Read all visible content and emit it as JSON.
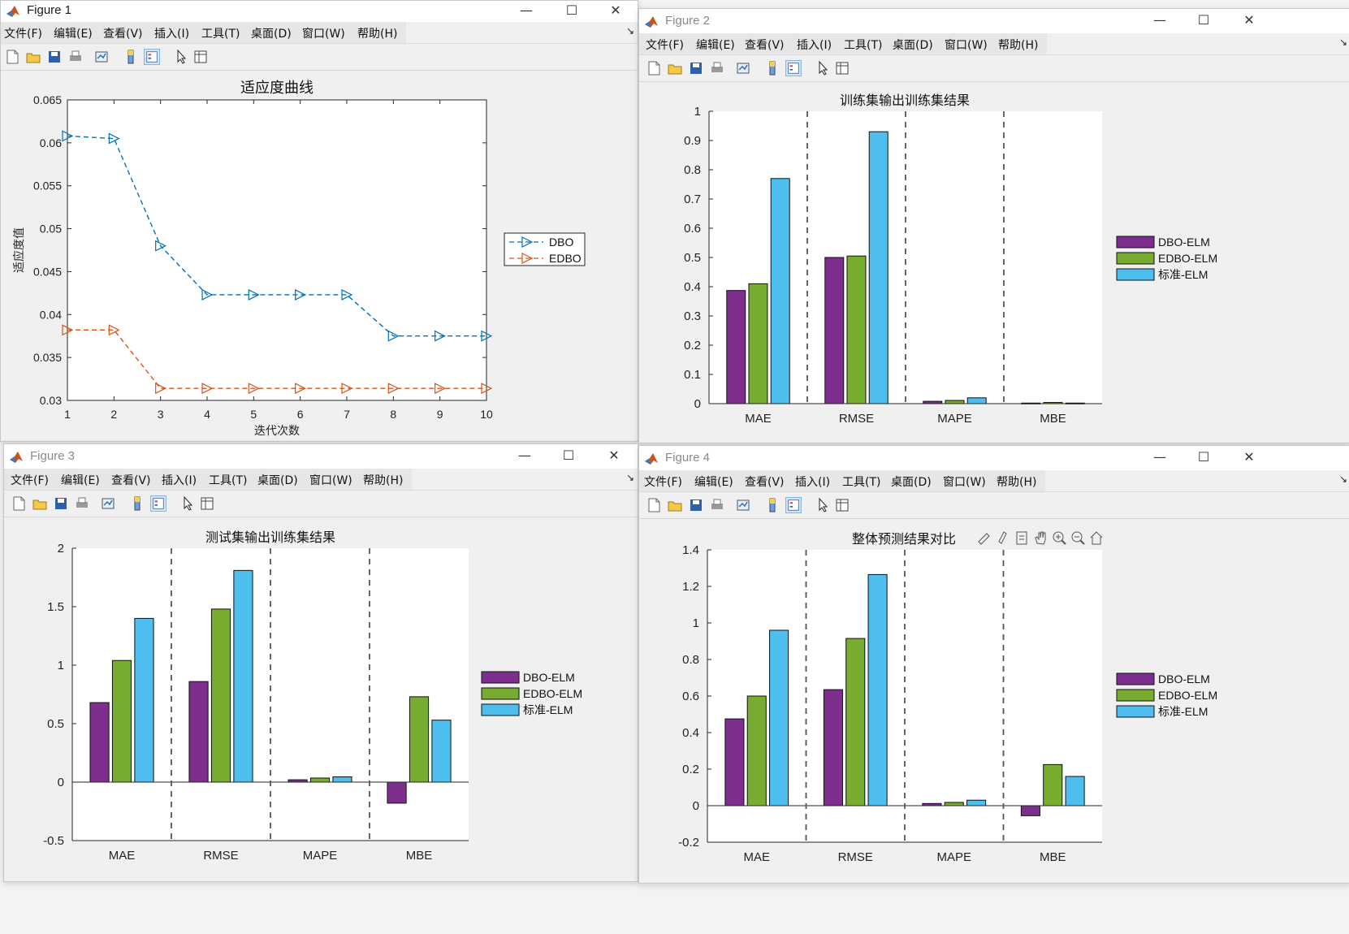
{
  "menu": [
    "文件(F)",
    "编辑(E)",
    "查看(V)",
    "插入(I)",
    "工具(T)",
    "桌面(D)",
    "窗口(W)",
    "帮助(H)"
  ],
  "window_controls": {
    "minimize": "—",
    "maximize": "☐",
    "close": "✕"
  },
  "toolbar_icons": [
    "new-figure-icon",
    "open-file-icon",
    "save-icon",
    "print-icon",
    "link-plot-icon",
    "colorbar-icon",
    "legend-icon",
    "pointer-icon",
    "property-inspector-icon"
  ],
  "axes_toolbar_icons": [
    "brush-icon",
    "data-tip-icon",
    "rotate-icon",
    "pan-icon",
    "zoom-in-icon",
    "zoom-out-icon",
    "home-icon"
  ],
  "colors": {
    "dbo": "#0072bd",
    "edbo": "#d95319",
    "bar1": "#7e2f8e",
    "bar2": "#77ac30",
    "bar3": "#4dbeee"
  },
  "figures": [
    {
      "title": "Figure 1",
      "chart_data": {
        "type": "line",
        "title": "适应度曲线",
        "xlabel": "迭代次数",
        "ylabel": "适应度值",
        "x": [
          1,
          2,
          3,
          4,
          5,
          6,
          7,
          8,
          9,
          10
        ],
        "xticks": [
          "1",
          "2",
          "3",
          "4",
          "5",
          "6",
          "7",
          "8",
          "9",
          "10"
        ],
        "yticks": [
          "0.03",
          "0.035",
          "0.04",
          "0.045",
          "0.05",
          "0.055",
          "0.06",
          "0.065"
        ],
        "ylim": [
          0.03,
          0.065
        ],
        "xlim": [
          1,
          10
        ],
        "legend_position": "right",
        "series": [
          {
            "name": "DBO",
            "values": [
              0.0608,
              0.0605,
              0.048,
              0.0423,
              0.0423,
              0.0423,
              0.0423,
              0.0375,
              0.0375,
              0.0375
            ]
          },
          {
            "name": "EDBO",
            "values": [
              0.0382,
              0.0382,
              0.0314,
              0.0314,
              0.0314,
              0.0314,
              0.0314,
              0.0314,
              0.0314,
              0.0314
            ]
          }
        ]
      }
    },
    {
      "title": "Figure 2",
      "chart_data": {
        "type": "bar",
        "title": "训练集输出训练集结果",
        "categories": [
          "MAE",
          "RMSE",
          "MAPE",
          "MBE"
        ],
        "yticks": [
          "0",
          "0.1",
          "0.2",
          "0.3",
          "0.4",
          "0.5",
          "0.6",
          "0.7",
          "0.8",
          "0.9",
          "1"
        ],
        "ylim": [
          0,
          1
        ],
        "legend_position": "right",
        "series": [
          {
            "name": "DBO-ELM",
            "values": [
              0.387,
              0.5,
              0.008,
              0.002
            ]
          },
          {
            "name": "EDBO-ELM",
            "values": [
              0.41,
              0.505,
              0.011,
              0.004
            ]
          },
          {
            "name": "标准-ELM",
            "values": [
              0.77,
              0.93,
              0.02,
              0.002
            ]
          }
        ]
      }
    },
    {
      "title": "Figure 3",
      "chart_data": {
        "type": "bar",
        "title": "测试集输出训练集结果",
        "categories": [
          "MAE",
          "RMSE",
          "MAPE",
          "MBE"
        ],
        "yticks": [
          "-0.5",
          "0",
          "0.5",
          "1",
          "1.5",
          "2"
        ],
        "ylim": [
          -0.5,
          2
        ],
        "legend_position": "right",
        "series": [
          {
            "name": "DBO-ELM",
            "values": [
              0.68,
              0.86,
              0.02,
              -0.18
            ]
          },
          {
            "name": "EDBO-ELM",
            "values": [
              1.04,
              1.48,
              0.035,
              0.73
            ]
          },
          {
            "name": "标准-ELM",
            "values": [
              1.4,
              1.81,
              0.045,
              0.53
            ]
          }
        ]
      }
    },
    {
      "title": "Figure 4",
      "chart_data": {
        "type": "bar",
        "title": "整体预测结果对比",
        "categories": [
          "MAE",
          "RMSE",
          "MAPE",
          "MBE"
        ],
        "yticks": [
          "-0.2",
          "0",
          "0.2",
          "0.4",
          "0.6",
          "0.8",
          "1",
          "1.2",
          "1.4"
        ],
        "ylim": [
          -0.2,
          1.4
        ],
        "legend_position": "right",
        "series": [
          {
            "name": "DBO-ELM",
            "values": [
              0.475,
              0.635,
              0.012,
              -0.055
            ]
          },
          {
            "name": "EDBO-ELM",
            "values": [
              0.6,
              0.915,
              0.018,
              0.225
            ]
          },
          {
            "name": "标准-ELM",
            "values": [
              0.96,
              1.265,
              0.03,
              0.16
            ]
          }
        ]
      }
    }
  ]
}
